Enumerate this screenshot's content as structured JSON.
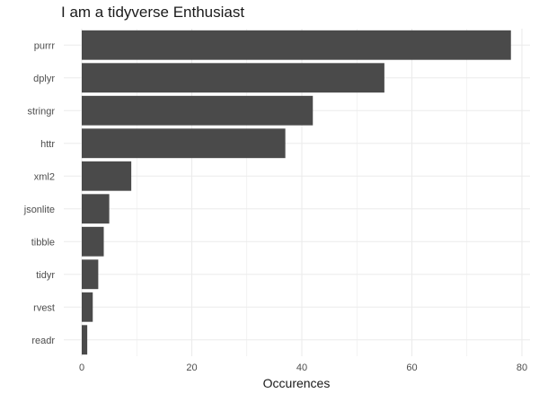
{
  "chart_data": {
    "type": "bar",
    "orientation": "horizontal",
    "title": "I am a tidyverse Enthusiast",
    "xlabel": "Occurences",
    "ylabel": "",
    "categories": [
      "purrr",
      "dplyr",
      "stringr",
      "httr",
      "xml2",
      "jsonlite",
      "tibble",
      "tidyr",
      "rvest",
      "readr"
    ],
    "values": [
      78,
      55,
      42,
      37,
      9,
      5,
      4,
      3,
      2,
      1
    ],
    "xlim": [
      0,
      81
    ],
    "x_ticks": [
      0,
      20,
      40,
      60,
      80
    ],
    "grid": true,
    "bar_color": "#4a4a4a",
    "grid_color": "#ebebeb"
  }
}
